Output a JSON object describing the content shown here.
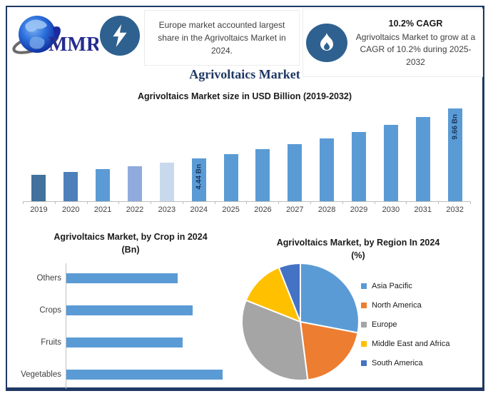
{
  "header": {
    "logo_text": "MMR",
    "note1_text": "Europe market accounted largest share in the Agrivoltaics Market in 2024.",
    "cagr_heading": "10.2% CAGR",
    "cagr_text": "Agrivoltaics Market to grow at a CAGR of 10.2% during 2025-2032"
  },
  "page_title": "Agrivoltaics Market",
  "icons": {
    "logo": "globe-icon",
    "note1_icon": "lightning-icon",
    "note2_icon": "flame-icon"
  },
  "colors": {
    "frame": "#1f3864",
    "badge": "#2e618f",
    "axis": "#bfbfbf",
    "bar_default": "#5b9bd5",
    "label_navy": "#17375e"
  },
  "chart_data": [
    {
      "type": "bar",
      "title": "Agrivoltaics Market size in USD Billion (2019-2032)",
      "x": [
        "2019",
        "2020",
        "2021",
        "2022",
        "2023",
        "2024",
        "2025",
        "2026",
        "2027",
        "2028",
        "2029",
        "2030",
        "2031",
        "2032"
      ],
      "values": [
        2.73,
        3.01,
        3.32,
        3.66,
        4.03,
        4.44,
        4.89,
        5.39,
        5.94,
        6.55,
        7.22,
        7.96,
        8.77,
        9.66
      ],
      "bar_colors": [
        "#41719c",
        "#4d7fba",
        "#5b9bd5",
        "#8faadc",
        "#c9d9ed",
        "#5b9bd5",
        "#5b9bd5",
        "#5b9bd5",
        "#5b9bd5",
        "#5b9bd5",
        "#5b9bd5",
        "#5b9bd5",
        "#5b9bd5",
        "#5b9bd5"
      ],
      "point_labels": [
        "",
        "",
        "",
        "",
        "",
        "4.44 Bn",
        "",
        "",
        "",
        "",
        "",
        "",
        "",
        "9.66 Bn"
      ],
      "xlabel": "",
      "ylabel": "USD Billion",
      "ylim": [
        0,
        10
      ],
      "grid": false,
      "legend_position": "none"
    },
    {
      "type": "bar-horizontal",
      "title": "Agrivoltaics Market, by Crop in 2024",
      "subtitle": "(Bn)",
      "categories": [
        "Others",
        "Crops",
        "Fruits",
        "Vegetables"
      ],
      "values": [
        0.97,
        1.1,
        1.01,
        1.36
      ],
      "bar_color": "#5b9bd5",
      "xlim": [
        0,
        1.55
      ],
      "grid": false,
      "legend_position": "none"
    },
    {
      "type": "pie",
      "title": "Agrivoltaics Market, by Region In 2024",
      "subtitle": "(%)",
      "labels": [
        "Asia Pacific",
        "North America",
        "Europe",
        "Middle East and Africa",
        "South America"
      ],
      "values": [
        28,
        20,
        33,
        13,
        6
      ],
      "colors": [
        "#5b9bd5",
        "#ed7d31",
        "#a5a5a5",
        "#ffc000",
        "#4472c4"
      ],
      "legend_position": "right"
    }
  ]
}
